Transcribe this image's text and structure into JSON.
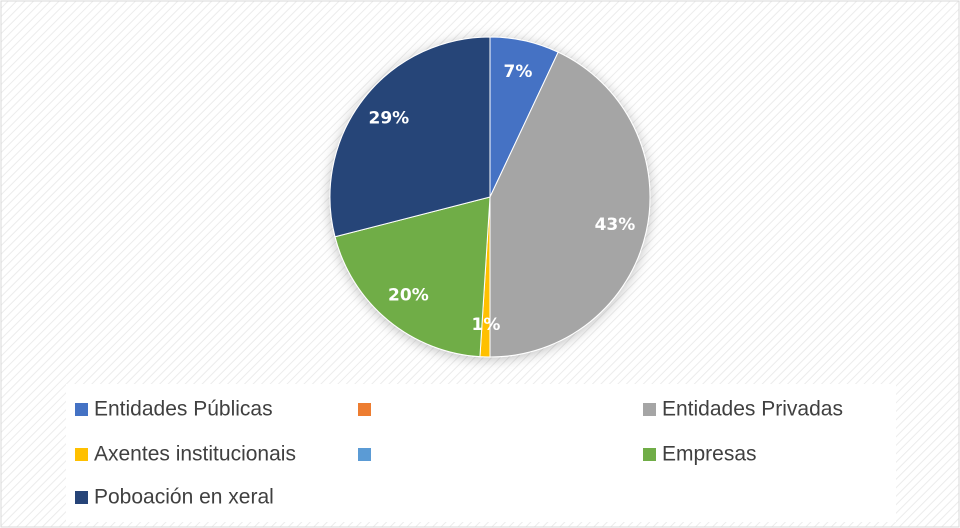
{
  "chart_data": {
    "type": "pie",
    "categories": [
      "Entidades Públicas",
      null,
      "Entidades Privadas",
      "Axentes institucionais",
      null,
      "Empresas",
      "Poboación en xeral"
    ],
    "values": [
      7,
      0,
      43,
      1,
      0,
      20,
      29
    ],
    "value_labels": [
      "7%",
      null,
      "43%",
      "1%",
      null,
      "20%",
      "29%"
    ],
    "colors": [
      "#4472c4",
      "#ed7d31",
      "#a5a5a5",
      "#ffc000",
      "#5b9bd5",
      "#70ad47",
      "#264478"
    ],
    "legend": "bottom"
  }
}
